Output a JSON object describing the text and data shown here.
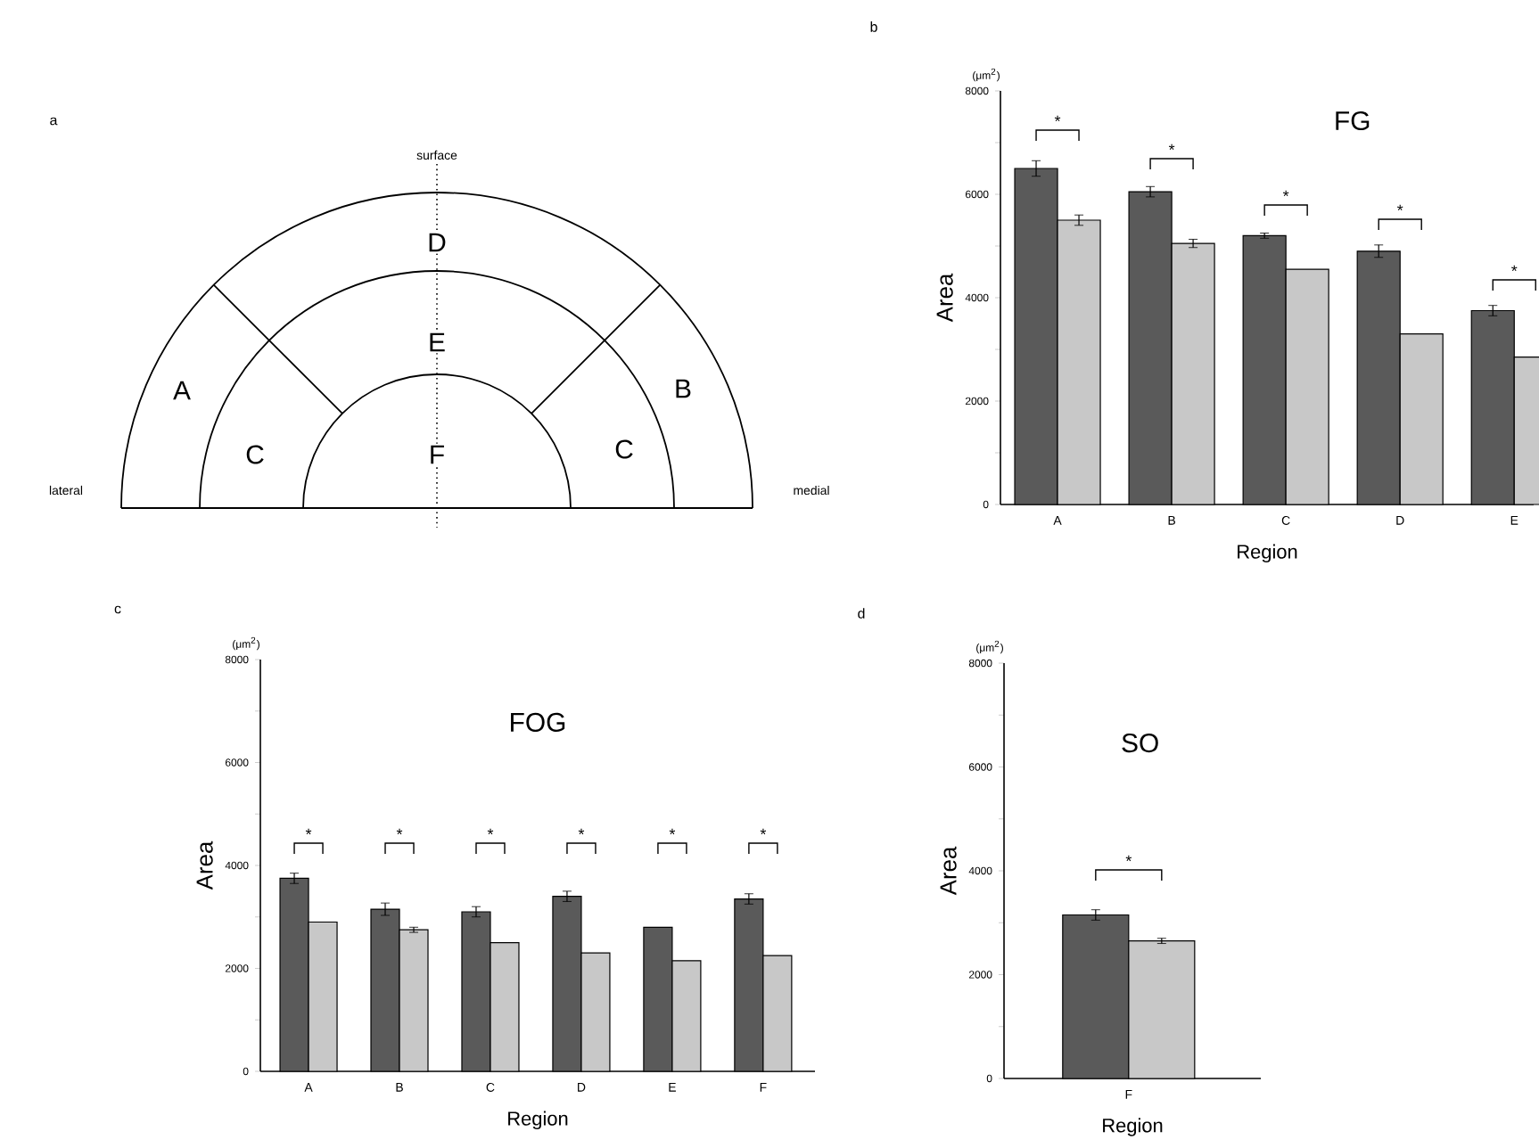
{
  "chart_data": [
    {
      "type": "other",
      "annotations": [
        "a",
        "surface",
        "lateral",
        "medial",
        "A",
        "B",
        "C",
        "C",
        "D",
        "E",
        "F"
      ]
    },
    {
      "type": "bar",
      "title": "FG",
      "xlabel": "Region",
      "ylabel": "Area",
      "categories": [
        "A",
        "B",
        "C",
        "D",
        "E"
      ],
      "series": [
        {
          "color": "#5a5a5a",
          "values": [
            6500,
            6050,
            5200,
            4900,
            3750
          ],
          "errors": [
            150,
            100,
            50,
            120,
            100
          ]
        },
        {
          "color": "#c8c8c8",
          "values": [
            5500,
            5050,
            4550,
            3300,
            2850
          ],
          "errors": [
            100,
            80,
            null,
            null,
            null
          ]
        }
      ],
      "ylim": [
        0,
        8000
      ],
      "yticks": [
        0,
        {
          "value": 1000,
          "label": null
        },
        2000,
        {
          "value": 3000,
          "label": null
        },
        4000,
        {
          "value": 5000,
          "label": null
        },
        6000,
        {
          "value": 7000,
          "label": null
        },
        8000
      ],
      "annotations": [
        "b",
        "(μm$^{2}$)",
        "*",
        "*",
        "*",
        "*",
        "*"
      ]
    },
    {
      "type": "bar",
      "title": "FOG",
      "xlabel": "Region",
      "ylabel": "Area",
      "categories": [
        "A",
        "B",
        "C",
        "D",
        "E",
        "F"
      ],
      "series": [
        {
          "color": "#5a5a5a",
          "values": [
            3750,
            3150,
            3100,
            3400,
            2800,
            3350
          ],
          "errors": [
            100,
            120,
            100,
            100,
            null,
            100
          ]
        },
        {
          "color": "#c8c8c8",
          "values": [
            2900,
            2750,
            2500,
            2300,
            2150,
            2250
          ],
          "errors": [
            null,
            50,
            null,
            null,
            null,
            null
          ]
        }
      ],
      "ylim": [
        0,
        8000
      ],
      "yticks": [
        0,
        {
          "value": 1000,
          "label": null
        },
        2000,
        {
          "value": 3000,
          "label": null
        },
        4000,
        {
          "value": 5000,
          "label": null
        },
        6000,
        {
          "value": 7000,
          "label": null
        },
        8000
      ],
      "annotations": [
        "c",
        "(μm$^{2}$)",
        "*",
        "*",
        "*",
        "*",
        "*",
        "*"
      ]
    },
    {
      "type": "bar",
      "title": "SO",
      "xlabel": "Region",
      "ylabel": "Area",
      "categories": [
        "F"
      ],
      "series": [
        {
          "color": "#5a5a5a",
          "values": [
            3150
          ],
          "errors": [
            100
          ]
        },
        {
          "color": "#c8c8c8",
          "values": [
            2650
          ],
          "errors": [
            50
          ]
        }
      ],
      "ylim": [
        0,
        8000
      ],
      "yticks": [
        0,
        {
          "value": 1000,
          "label": null
        },
        2000,
        {
          "value": 3000,
          "label": null
        },
        4000,
        {
          "value": 5000,
          "label": null
        },
        6000,
        {
          "value": 7000,
          "label": null
        },
        8000
      ],
      "annotations": [
        "d",
        "(μm$^{2}$)",
        "*"
      ]
    }
  ]
}
